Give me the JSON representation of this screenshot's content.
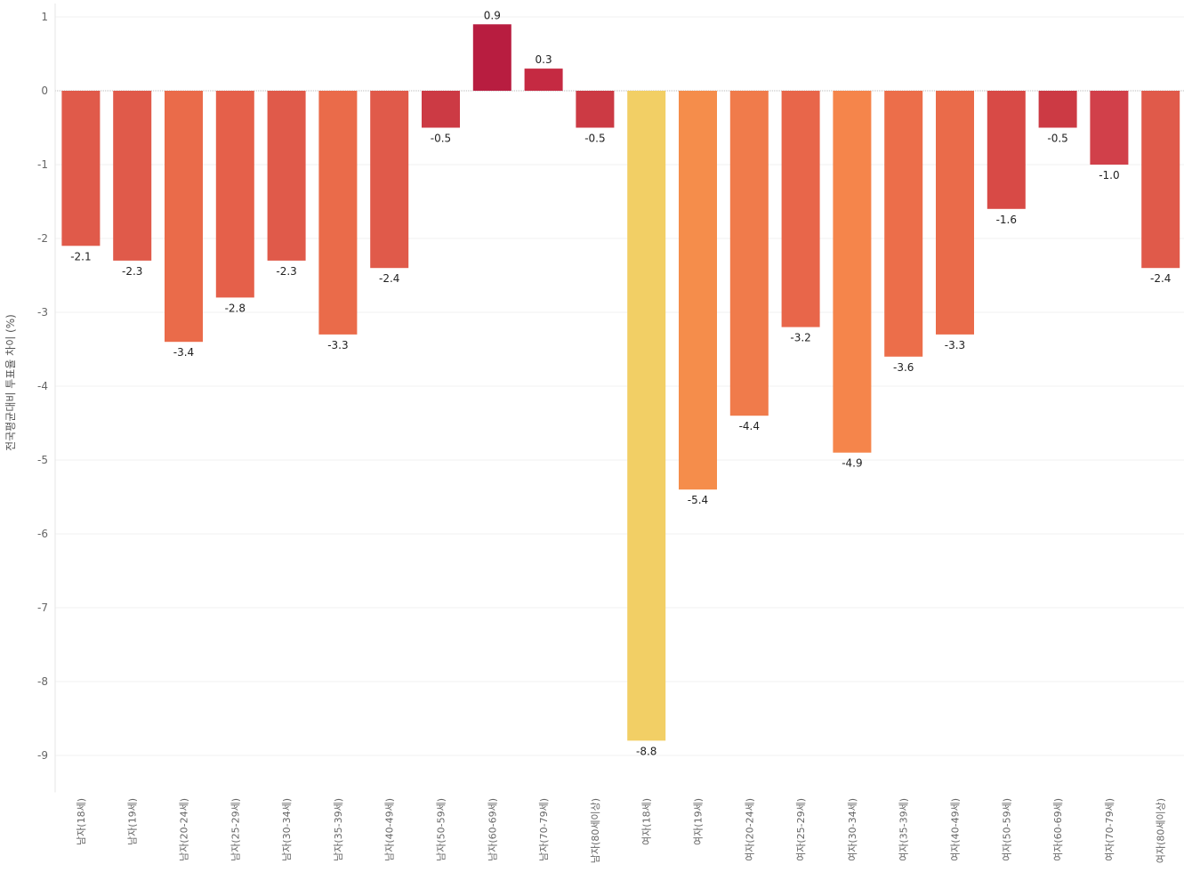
{
  "chart_data": {
    "type": "bar",
    "title": "",
    "xlabel": "",
    "ylabel": "전국평균대비 투표율 차이 (%)",
    "ylim": [
      -9.5,
      1.2
    ],
    "yticks": [
      1,
      0,
      -1,
      -2,
      -3,
      -4,
      -5,
      -6,
      -7,
      -8,
      -9
    ],
    "grid": true,
    "legend": "none",
    "categories": [
      "남자(18세)",
      "남자(19세)",
      "남자(20-24세)",
      "남자(25-29세)",
      "남자(30-34세)",
      "남자(35-39세)",
      "남자(40-49세)",
      "남자(50-59세)",
      "남자(60-69세)",
      "남자(70-79세)",
      "남자(80세이상)",
      "여자(18세)",
      "여자(19세)",
      "여자(20-24세)",
      "여자(25-29세)",
      "여자(30-34세)",
      "여자(35-39세)",
      "여자(40-49세)",
      "여자(50-59세)",
      "여자(60-69세)",
      "여자(70-79세)",
      "여자(80세이상)"
    ],
    "values": [
      -2.1,
      -2.3,
      -3.4,
      -2.8,
      -2.3,
      -3.3,
      -2.4,
      -0.5,
      0.9,
      0.3,
      -0.5,
      -8.8,
      -5.4,
      -4.4,
      -3.2,
      -4.9,
      -3.6,
      -3.3,
      -1.6,
      -0.5,
      -1.0,
      -2.4
    ],
    "data_labels": [
      "-2.1",
      "-2.3",
      "-3.4",
      "-2.8",
      "-2.3",
      "-3.3",
      "-2.4",
      "-0.5",
      "0.9",
      "0.3",
      "-0.5",
      "-8.8",
      "-5.4",
      "-4.4",
      "-3.2",
      "-4.9",
      "-3.6",
      "-3.3",
      "-1.6",
      "-0.5",
      "-1.0",
      "-2.4"
    ],
    "colors": [
      "#e05a4a",
      "#e05a4a",
      "#ea6b4a",
      "#e5604a",
      "#e05a4a",
      "#ea6b4a",
      "#e05a4a",
      "#cc3a44",
      "#b81d40",
      "#c52a42",
      "#cc3a44",
      "#f2cf65",
      "#f58d4b",
      "#f07b4b",
      "#e8664a",
      "#f5854b",
      "#ec6e4a",
      "#ea6b4a",
      "#d84a46",
      "#cc3a44",
      "#d1404a",
      "#e05a4a"
    ]
  }
}
